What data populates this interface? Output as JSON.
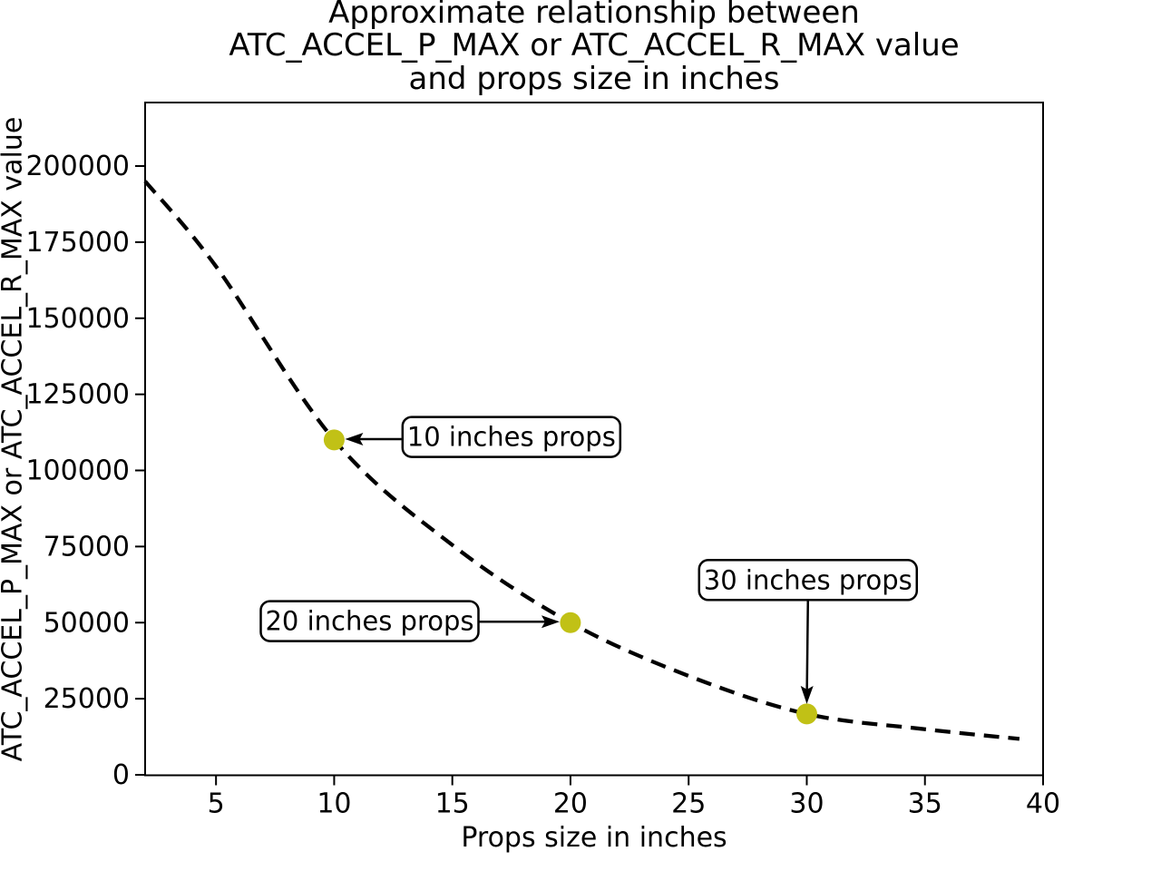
{
  "figure": {
    "title": "Approximate relationship between\nATC_ACCEL_P_MAX or ATC_ACCEL_R_MAX value\nand props size in inches",
    "xlabel": "Props size in inches",
    "ylabel": "ATC_ACCEL_P_MAX or ATC_ACCEL_R_MAX value"
  },
  "chart_data": {
    "type": "line",
    "title": "Approximate relationship between ATC_ACCEL_P_MAX or ATC_ACCEL_R_MAX value and props size in inches",
    "xlabel": "Props size in inches",
    "ylabel": "ATC_ACCEL_P_MAX or ATC_ACCEL_R_MAX value",
    "xlim": [
      2,
      40
    ],
    "ylim": [
      0,
      220900
    ],
    "xticks": [
      5,
      10,
      15,
      20,
      25,
      30,
      35,
      40
    ],
    "yticks": [
      0,
      25000,
      50000,
      75000,
      100000,
      125000,
      150000,
      175000,
      200000
    ],
    "grid": false,
    "legend": "none",
    "line_style": "dashed",
    "line_color": "#000000",
    "curve": {
      "x": [
        2,
        5,
        10,
        15,
        20,
        25,
        30,
        35,
        39
      ],
      "y": [
        195000,
        167000,
        110000,
        75500,
        50000,
        32500,
        20000,
        15000,
        11800
      ]
    },
    "markers": {
      "color": "#c1c116",
      "points": [
        {
          "x": 10,
          "y": 110000
        },
        {
          "x": 20,
          "y": 50000
        },
        {
          "x": 30,
          "y": 20000
        }
      ]
    },
    "annotations": [
      {
        "label": "10 inches props",
        "x": 10,
        "y": 110000,
        "box_cx": 17.5,
        "box_cy": 111000,
        "dir": "left"
      },
      {
        "label": "20 inches props",
        "x": 20,
        "y": 50000,
        "box_cx": 11.5,
        "box_cy": 50500,
        "dir": "right"
      },
      {
        "label": "30 inches props",
        "x": 30,
        "y": 20000,
        "box_cx": 30.05,
        "box_cy": 64000,
        "dir": "down"
      }
    ]
  }
}
